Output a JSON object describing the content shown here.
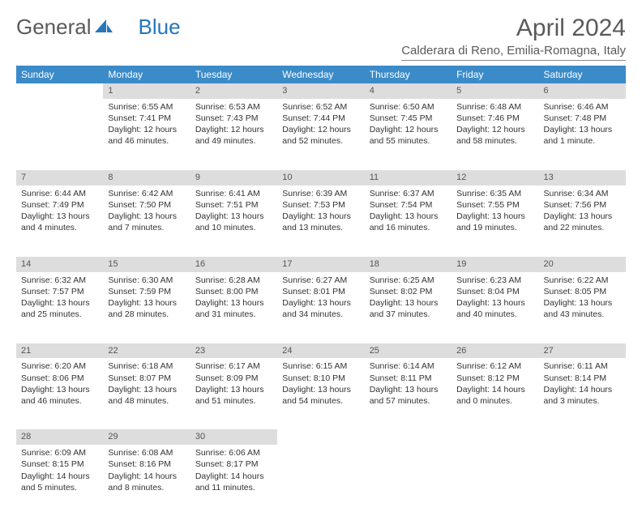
{
  "logo": {
    "part1": "General",
    "part2": "Blue"
  },
  "title": "April 2024",
  "location": "Calderara di Reno, Emilia-Romagna, Italy",
  "header_bg": "#3b8bc9",
  "header_text_color": "#ffffff",
  "daynum_bg": "#dddddd",
  "weekdays": [
    "Sunday",
    "Monday",
    "Tuesday",
    "Wednesday",
    "Thursday",
    "Friday",
    "Saturday"
  ],
  "weeks": [
    {
      "nums": [
        "",
        "1",
        "2",
        "3",
        "4",
        "5",
        "6"
      ],
      "cells": [
        null,
        {
          "sunrise": "Sunrise: 6:55 AM",
          "sunset": "Sunset: 7:41 PM",
          "daylight": "Daylight: 12 hours and 46 minutes."
        },
        {
          "sunrise": "Sunrise: 6:53 AM",
          "sunset": "Sunset: 7:43 PM",
          "daylight": "Daylight: 12 hours and 49 minutes."
        },
        {
          "sunrise": "Sunrise: 6:52 AM",
          "sunset": "Sunset: 7:44 PM",
          "daylight": "Daylight: 12 hours and 52 minutes."
        },
        {
          "sunrise": "Sunrise: 6:50 AM",
          "sunset": "Sunset: 7:45 PM",
          "daylight": "Daylight: 12 hours and 55 minutes."
        },
        {
          "sunrise": "Sunrise: 6:48 AM",
          "sunset": "Sunset: 7:46 PM",
          "daylight": "Daylight: 12 hours and 58 minutes."
        },
        {
          "sunrise": "Sunrise: 6:46 AM",
          "sunset": "Sunset: 7:48 PM",
          "daylight": "Daylight: 13 hours and 1 minute."
        }
      ]
    },
    {
      "nums": [
        "7",
        "8",
        "9",
        "10",
        "11",
        "12",
        "13"
      ],
      "cells": [
        {
          "sunrise": "Sunrise: 6:44 AM",
          "sunset": "Sunset: 7:49 PM",
          "daylight": "Daylight: 13 hours and 4 minutes."
        },
        {
          "sunrise": "Sunrise: 6:42 AM",
          "sunset": "Sunset: 7:50 PM",
          "daylight": "Daylight: 13 hours and 7 minutes."
        },
        {
          "sunrise": "Sunrise: 6:41 AM",
          "sunset": "Sunset: 7:51 PM",
          "daylight": "Daylight: 13 hours and 10 minutes."
        },
        {
          "sunrise": "Sunrise: 6:39 AM",
          "sunset": "Sunset: 7:53 PM",
          "daylight": "Daylight: 13 hours and 13 minutes."
        },
        {
          "sunrise": "Sunrise: 6:37 AM",
          "sunset": "Sunset: 7:54 PM",
          "daylight": "Daylight: 13 hours and 16 minutes."
        },
        {
          "sunrise": "Sunrise: 6:35 AM",
          "sunset": "Sunset: 7:55 PM",
          "daylight": "Daylight: 13 hours and 19 minutes."
        },
        {
          "sunrise": "Sunrise: 6:34 AM",
          "sunset": "Sunset: 7:56 PM",
          "daylight": "Daylight: 13 hours and 22 minutes."
        }
      ]
    },
    {
      "nums": [
        "14",
        "15",
        "16",
        "17",
        "18",
        "19",
        "20"
      ],
      "cells": [
        {
          "sunrise": "Sunrise: 6:32 AM",
          "sunset": "Sunset: 7:57 PM",
          "daylight": "Daylight: 13 hours and 25 minutes."
        },
        {
          "sunrise": "Sunrise: 6:30 AM",
          "sunset": "Sunset: 7:59 PM",
          "daylight": "Daylight: 13 hours and 28 minutes."
        },
        {
          "sunrise": "Sunrise: 6:28 AM",
          "sunset": "Sunset: 8:00 PM",
          "daylight": "Daylight: 13 hours and 31 minutes."
        },
        {
          "sunrise": "Sunrise: 6:27 AM",
          "sunset": "Sunset: 8:01 PM",
          "daylight": "Daylight: 13 hours and 34 minutes."
        },
        {
          "sunrise": "Sunrise: 6:25 AM",
          "sunset": "Sunset: 8:02 PM",
          "daylight": "Daylight: 13 hours and 37 minutes."
        },
        {
          "sunrise": "Sunrise: 6:23 AM",
          "sunset": "Sunset: 8:04 PM",
          "daylight": "Daylight: 13 hours and 40 minutes."
        },
        {
          "sunrise": "Sunrise: 6:22 AM",
          "sunset": "Sunset: 8:05 PM",
          "daylight": "Daylight: 13 hours and 43 minutes."
        }
      ]
    },
    {
      "nums": [
        "21",
        "22",
        "23",
        "24",
        "25",
        "26",
        "27"
      ],
      "cells": [
        {
          "sunrise": "Sunrise: 6:20 AM",
          "sunset": "Sunset: 8:06 PM",
          "daylight": "Daylight: 13 hours and 46 minutes."
        },
        {
          "sunrise": "Sunrise: 6:18 AM",
          "sunset": "Sunset: 8:07 PM",
          "daylight": "Daylight: 13 hours and 48 minutes."
        },
        {
          "sunrise": "Sunrise: 6:17 AM",
          "sunset": "Sunset: 8:09 PM",
          "daylight": "Daylight: 13 hours and 51 minutes."
        },
        {
          "sunrise": "Sunrise: 6:15 AM",
          "sunset": "Sunset: 8:10 PM",
          "daylight": "Daylight: 13 hours and 54 minutes."
        },
        {
          "sunrise": "Sunrise: 6:14 AM",
          "sunset": "Sunset: 8:11 PM",
          "daylight": "Daylight: 13 hours and 57 minutes."
        },
        {
          "sunrise": "Sunrise: 6:12 AM",
          "sunset": "Sunset: 8:12 PM",
          "daylight": "Daylight: 14 hours and 0 minutes."
        },
        {
          "sunrise": "Sunrise: 6:11 AM",
          "sunset": "Sunset: 8:14 PM",
          "daylight": "Daylight: 14 hours and 3 minutes."
        }
      ]
    },
    {
      "nums": [
        "28",
        "29",
        "30",
        "",
        "",
        "",
        ""
      ],
      "cells": [
        {
          "sunrise": "Sunrise: 6:09 AM",
          "sunset": "Sunset: 8:15 PM",
          "daylight": "Daylight: 14 hours and 5 minutes."
        },
        {
          "sunrise": "Sunrise: 6:08 AM",
          "sunset": "Sunset: 8:16 PM",
          "daylight": "Daylight: 14 hours and 8 minutes."
        },
        {
          "sunrise": "Sunrise: 6:06 AM",
          "sunset": "Sunset: 8:17 PM",
          "daylight": "Daylight: 14 hours and 11 minutes."
        },
        null,
        null,
        null,
        null
      ]
    }
  ]
}
